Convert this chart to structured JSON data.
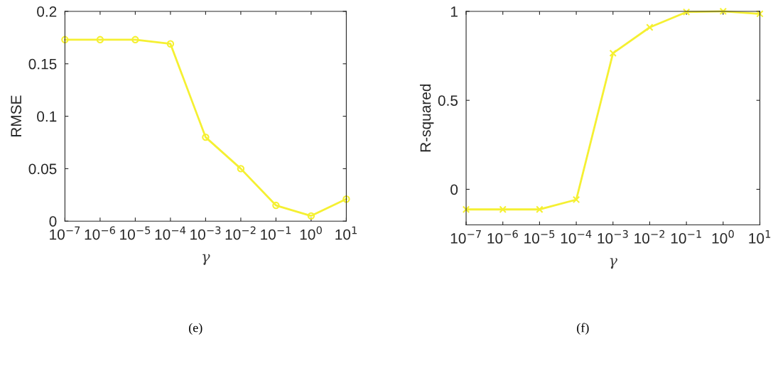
{
  "chart_data": [
    {
      "type": "line",
      "xlabel": "γ",
      "ylabel": "RMSE",
      "log": "x",
      "marker": "circle",
      "grid": false,
      "legend": false,
      "x": [
        1e-07,
        1e-06,
        1e-05,
        0.0001,
        0.001,
        0.01,
        0.1,
        1,
        10
      ],
      "series": [
        {
          "color": "#f5f032",
          "values": [
            0.173,
            0.173,
            0.173,
            0.169,
            0.08,
            0.05,
            0.015,
            0.005,
            0.021
          ]
        }
      ],
      "xlim": [
        1e-07,
        10
      ],
      "ylim": [
        0,
        0.2
      ],
      "xticks": [
        {
          "value": 1e-07,
          "label": "10$^{−7}$"
        },
        {
          "value": 1e-06,
          "label": "10$^{−6}$"
        },
        {
          "value": 1e-05,
          "label": "10$^{−5}$"
        },
        {
          "value": 0.0001,
          "label": "10$^{−4}$"
        },
        {
          "value": 0.001,
          "label": "10$^{−3}$"
        },
        {
          "value": 0.01,
          "label": "10$^{−2}$"
        },
        {
          "value": 0.1,
          "label": "10$^{−1}$"
        },
        {
          "value": 1,
          "label": "10$^{0}$"
        },
        {
          "value": 10,
          "label": "10$^{1}$"
        }
      ],
      "yticks": [
        0,
        0.05,
        0.1,
        0.15,
        0.2
      ],
      "annotations": [
        "(e)"
      ]
    },
    {
      "type": "line",
      "xlabel": "γ",
      "ylabel": "R-squared",
      "log": "x",
      "marker": "cross",
      "grid": false,
      "legend": false,
      "x": [
        1e-07,
        1e-06,
        1e-05,
        0.0001,
        0.001,
        0.01,
        0.1,
        1,
        10
      ],
      "series": [
        {
          "color": "#f5f032",
          "values": [
            -0.113,
            -0.113,
            -0.113,
            -0.058,
            0.765,
            0.91,
            0.996,
            1.0,
            0.986
          ]
        }
      ],
      "xlim": [
        1e-07,
        10
      ],
      "ylim": [
        -0.2,
        1
      ],
      "xticks": [
        {
          "value": 1e-07,
          "label": "10$^{−7}$"
        },
        {
          "value": 1e-06,
          "label": "10$^{−6}$"
        },
        {
          "value": 1e-05,
          "label": "10$^{−5}$"
        },
        {
          "value": 0.0001,
          "label": "10$^{−4}$"
        },
        {
          "value": 0.001,
          "label": "10$^{−3}$"
        },
        {
          "value": 0.01,
          "label": "10$^{−2}$"
        },
        {
          "value": 0.1,
          "label": "10$^{−1}$"
        },
        {
          "value": 1,
          "label": "10$^{0}$"
        },
        {
          "value": 10,
          "label": "10$^{1}$"
        }
      ],
      "yticks": [
        0,
        0.5,
        1
      ],
      "annotations": [
        "(f)"
      ]
    }
  ]
}
